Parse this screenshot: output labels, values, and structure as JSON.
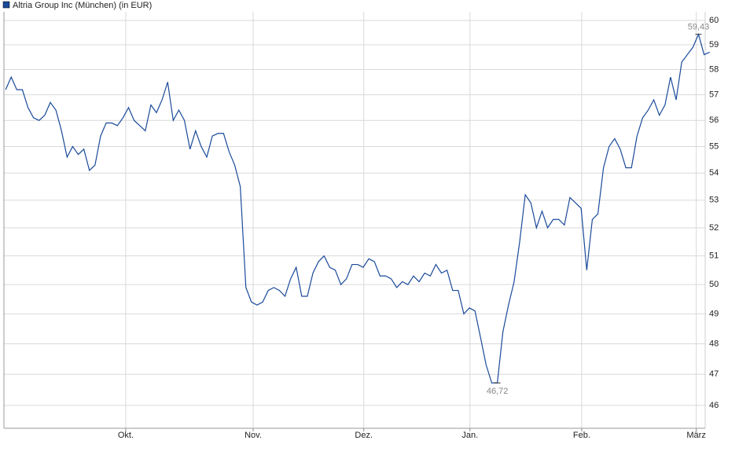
{
  "chart_data": {
    "type": "line",
    "log_scale": true,
    "grid": true,
    "series": [
      {
        "name": "Altria Group Inc (München) (in EUR)",
        "color": "#1a4a9a",
        "values": [
          57.2,
          57.7,
          57.2,
          57.2,
          56.5,
          56.1,
          56.0,
          56.2,
          56.7,
          56.4,
          55.6,
          54.6,
          55.0,
          54.7,
          54.9,
          54.1,
          54.3,
          55.4,
          55.9,
          55.9,
          55.8,
          56.1,
          56.5,
          56.0,
          55.8,
          55.6,
          56.6,
          56.3,
          56.8,
          57.5,
          56.0,
          56.4,
          56.0,
          54.9,
          55.6,
          55.0,
          54.6,
          55.4,
          55.5,
          55.5,
          54.8,
          54.3,
          53.5,
          49.9,
          49.4,
          49.3,
          49.4,
          49.8,
          49.9,
          49.8,
          49.6,
          50.2,
          50.6,
          49.6,
          49.6,
          50.4,
          50.8,
          51.0,
          50.6,
          50.5,
          50.0,
          50.2,
          50.7,
          50.7,
          50.6,
          50.9,
          50.8,
          50.3,
          50.3,
          50.2,
          49.9,
          50.1,
          50.0,
          50.3,
          50.1,
          50.4,
          50.3,
          50.7,
          50.4,
          50.5,
          49.8,
          49.8,
          49.0,
          49.2,
          49.1,
          48.2,
          47.3,
          46.72,
          46.72,
          48.4,
          49.3,
          50.1,
          51.5,
          53.2,
          52.9,
          52.0,
          52.6,
          52.0,
          52.3,
          52.3,
          52.1,
          53.1,
          52.9,
          52.7,
          50.5,
          52.3,
          52.5,
          54.2,
          55.0,
          55.3,
          54.9,
          54.2,
          54.2,
          55.4,
          56.1,
          56.4,
          56.8,
          56.2,
          56.6,
          57.7,
          56.8,
          58.3,
          58.6,
          58.9,
          59.43,
          58.6,
          58.7
        ],
        "value_labels": [
          null,
          null,
          null,
          null,
          null,
          null,
          null,
          null,
          null,
          null,
          null,
          null,
          null,
          null,
          null,
          null,
          null,
          null,
          null,
          null,
          null,
          null,
          null,
          null,
          null,
          null,
          null,
          null,
          null,
          null,
          null,
          null,
          null,
          null,
          null,
          null,
          null,
          null,
          null,
          null,
          null,
          null,
          null,
          null,
          null,
          null,
          null,
          null,
          null,
          null,
          null,
          null,
          null,
          null,
          null,
          null,
          null,
          null,
          null,
          null,
          null,
          null,
          null,
          null,
          null,
          null,
          null,
          null,
          null,
          null,
          null,
          null,
          null,
          null,
          null,
          null,
          null,
          null,
          null,
          null,
          null,
          null,
          null,
          null,
          null,
          null,
          null,
          null,
          "46,72",
          null,
          null,
          null,
          null,
          null,
          null,
          null,
          null,
          null,
          null,
          null,
          null,
          null,
          null,
          null,
          null,
          null,
          null,
          null,
          null,
          null,
          null,
          null,
          null,
          null,
          null,
          null,
          null,
          null,
          null,
          null,
          null,
          null,
          null,
          null,
          "59,43",
          null,
          null
        ]
      }
    ],
    "xlim": [
      -0.3,
      125.2
    ],
    "xticks": [
      {
        "value": 21.5,
        "label": "Okt."
      },
      {
        "value": 44.3,
        "label": "Nov."
      },
      {
        "value": 64.1,
        "label": "Dez."
      },
      {
        "value": 83.1,
        "label": "Jan."
      },
      {
        "value": 103.1,
        "label": "Feb."
      },
      {
        "value": 123.6,
        "label": "März"
      }
    ],
    "ylim": [
      45.28,
      60.36
    ],
    "yticks": [
      46,
      47,
      48,
      49,
      50,
      51,
      52,
      53,
      54,
      55,
      56,
      57,
      58,
      59,
      60
    ]
  }
}
